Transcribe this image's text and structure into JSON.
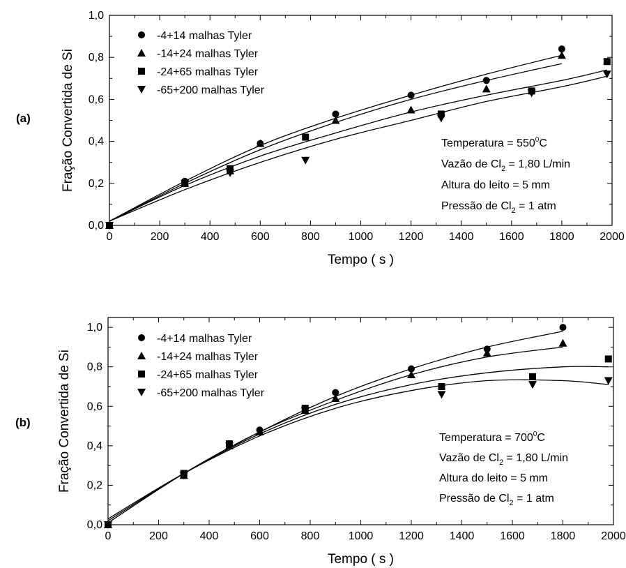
{
  "chart_data": [
    {
      "type": "scatter",
      "panel_label": "(a)",
      "xlabel": "Tempo ( s )",
      "ylabel": "Fração Convertida de Si",
      "xlim": [
        0,
        2000
      ],
      "ylim": [
        0,
        1.0
      ],
      "x_ticks": [
        "0",
        "200",
        "400",
        "600",
        "800",
        "1000",
        "1200",
        "1400",
        "1600",
        "1800",
        "2000"
      ],
      "y_ticks": [
        "0,0",
        "0,2",
        "0,4",
        "0,6",
        "0,8",
        "1,0"
      ],
      "legend_placement": "top-left",
      "series": [
        {
          "name": "-4+14 malhas Tyler",
          "marker": "circle",
          "points": [
            [
              0,
              0.0
            ],
            [
              300,
              0.21
            ],
            [
              480,
              0.27
            ],
            [
              600,
              0.39
            ],
            [
              900,
              0.53
            ],
            [
              1200,
              0.62
            ],
            [
              1500,
              0.69
            ],
            [
              1800,
              0.84
            ]
          ],
          "fit": [
            [
              0,
              0.02
            ],
            [
              300,
              0.21
            ],
            [
              600,
              0.38
            ],
            [
              900,
              0.51
            ],
            [
              1200,
              0.62
            ],
            [
              1500,
              0.72
            ],
            [
              1800,
              0.81
            ]
          ]
        },
        {
          "name": "-14+24 malhas Tyler",
          "marker": "triangle-up",
          "points": [
            [
              0,
              0.0
            ],
            [
              300,
              0.2
            ],
            [
              480,
              0.26
            ],
            [
              600,
              0.39
            ],
            [
              900,
              0.5
            ],
            [
              1200,
              0.55
            ],
            [
              1500,
              0.65
            ],
            [
              1800,
              0.81
            ]
          ],
          "fit": [
            [
              0,
              0.02
            ],
            [
              300,
              0.2
            ],
            [
              600,
              0.36
            ],
            [
              900,
              0.49
            ],
            [
              1200,
              0.6
            ],
            [
              1500,
              0.69
            ],
            [
              1800,
              0.77
            ]
          ]
        },
        {
          "name": "-24+65 malhas Tyler",
          "marker": "square",
          "points": [
            [
              0,
              0.0
            ],
            [
              300,
              0.2
            ],
            [
              480,
              0.27
            ],
            [
              780,
              0.42
            ],
            [
              1320,
              0.53
            ],
            [
              1680,
              0.64
            ],
            [
              1980,
              0.78
            ]
          ],
          "fit": [
            [
              0,
              0.02
            ],
            [
              300,
              0.19
            ],
            [
              600,
              0.33
            ],
            [
              900,
              0.44
            ],
            [
              1200,
              0.54
            ],
            [
              1500,
              0.62
            ],
            [
              1800,
              0.69
            ],
            [
              1980,
              0.74
            ]
          ]
        },
        {
          "name": "-65+200 malhas Tyler",
          "marker": "triangle-down",
          "points": [
            [
              0,
              0.0
            ],
            [
              300,
              0.2
            ],
            [
              480,
              0.25
            ],
            [
              780,
              0.31
            ],
            [
              1320,
              0.51
            ],
            [
              1680,
              0.63
            ],
            [
              1980,
              0.72
            ]
          ],
          "fit": [
            [
              0,
              0.02
            ],
            [
              300,
              0.17
            ],
            [
              600,
              0.3
            ],
            [
              900,
              0.41
            ],
            [
              1200,
              0.5
            ],
            [
              1500,
              0.59
            ],
            [
              1800,
              0.66
            ],
            [
              1980,
              0.71
            ]
          ]
        }
      ],
      "annotation": {
        "temperatura": "Temperatura = 550",
        "temp_unit": "C",
        "vazao_pre": "Vazão de Cl",
        "vazao_post": " = 1,80 L/min",
        "altura": "Altura do leito = 5 mm",
        "pressao_pre": "Pressão de Cl",
        "pressao_post": " = 1 atm",
        "sub": "2",
        "sup": "0"
      }
    },
    {
      "type": "scatter",
      "panel_label": "(b)",
      "xlabel": "Tempo ( s )",
      "ylabel": "Fração Convertida de Si",
      "xlim": [
        0,
        2000
      ],
      "ylim": [
        0,
        1.05
      ],
      "x_ticks": [
        "0",
        "200",
        "400",
        "600",
        "800",
        "1000",
        "1200",
        "1400",
        "1600",
        "1800",
        "2000"
      ],
      "y_ticks": [
        "0,0",
        "0,2",
        "0,4",
        "0,6",
        "0,8",
        "1,0"
      ],
      "legend_placement": "top-left",
      "series": [
        {
          "name": "-4+14 malhas Tyler",
          "marker": "circle",
          "points": [
            [
              0,
              0.0
            ],
            [
              300,
              0.26
            ],
            [
              480,
              0.4
            ],
            [
              600,
              0.48
            ],
            [
              780,
              0.59
            ],
            [
              900,
              0.67
            ],
            [
              1200,
              0.79
            ],
            [
              1500,
              0.89
            ],
            [
              1800,
              1.0
            ]
          ],
          "fit": [
            [
              0,
              0.01
            ],
            [
              300,
              0.26
            ],
            [
              600,
              0.47
            ],
            [
              900,
              0.65
            ],
            [
              1200,
              0.79
            ],
            [
              1500,
              0.9
            ],
            [
              1800,
              0.98
            ]
          ]
        },
        {
          "name": "-14+24 malhas Tyler",
          "marker": "triangle-up",
          "points": [
            [
              0,
              0.0
            ],
            [
              300,
              0.25
            ],
            [
              480,
              0.4
            ],
            [
              600,
              0.47
            ],
            [
              780,
              0.58
            ],
            [
              900,
              0.64
            ],
            [
              1200,
              0.76
            ],
            [
              1500,
              0.87
            ],
            [
              1800,
              0.92
            ]
          ],
          "fit": [
            [
              0,
              0.01
            ],
            [
              300,
              0.26
            ],
            [
              600,
              0.47
            ],
            [
              900,
              0.63
            ],
            [
              1200,
              0.76
            ],
            [
              1500,
              0.85
            ],
            [
              1800,
              0.9
            ]
          ]
        },
        {
          "name": "-24+65 malhas Tyler",
          "marker": "square",
          "points": [
            [
              0,
              0.0
            ],
            [
              300,
              0.26
            ],
            [
              480,
              0.41
            ],
            [
              780,
              0.59
            ],
            [
              1320,
              0.7
            ],
            [
              1680,
              0.75
            ],
            [
              1980,
              0.84
            ]
          ],
          "fit": [
            [
              0,
              0.02
            ],
            [
              300,
              0.26
            ],
            [
              600,
              0.46
            ],
            [
              900,
              0.61
            ],
            [
              1200,
              0.71
            ],
            [
              1500,
              0.77
            ],
            [
              1800,
              0.8
            ],
            [
              1980,
              0.8
            ]
          ]
        },
        {
          "name": "-65+200 malhas Tyler",
          "marker": "triangle-down",
          "points": [
            [
              0,
              0.0
            ],
            [
              300,
              0.25
            ],
            [
              480,
              0.4
            ],
            [
              780,
              0.58
            ],
            [
              1320,
              0.66
            ],
            [
              1680,
              0.71
            ],
            [
              1980,
              0.73
            ]
          ],
          "fit": [
            [
              0,
              0.03
            ],
            [
              300,
              0.26
            ],
            [
              600,
              0.45
            ],
            [
              900,
              0.59
            ],
            [
              1200,
              0.68
            ],
            [
              1500,
              0.73
            ],
            [
              1800,
              0.73
            ],
            [
              1980,
              0.71
            ]
          ]
        }
      ],
      "annotation": {
        "temperatura": "Temperatura = 700",
        "temp_unit": "C",
        "vazao_pre": "Vazão de Cl",
        "vazao_post": " = 1,80 L/min",
        "altura": "Altura do leito = 5 mm",
        "pressao_pre": "Pressão de Cl",
        "pressao_post": " = 1 atm",
        "sub": "2",
        "sup": "0"
      }
    }
  ]
}
